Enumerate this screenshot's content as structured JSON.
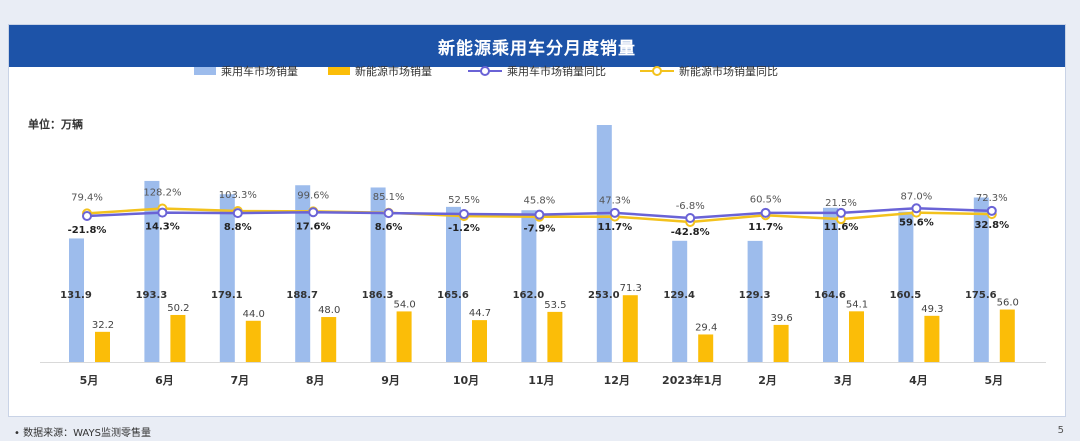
{
  "title": "新能源乘用车分月度销量",
  "unit_label": "单位：万辆",
  "source": "•    数据来源：WAYS监测零售量",
  "page_number": "5",
  "colors": {
    "title_bg": "#1d53a8",
    "bar_passenger": "#9dbcec",
    "bar_nev": "#fbbd08",
    "line_passenger": "#6a63d6",
    "line_nev": "#f3c21d"
  },
  "chart_data": {
    "type": "bar",
    "categories": [
      "5月",
      "6月",
      "7月",
      "8月",
      "9月",
      "10月",
      "11月",
      "12月",
      "2023年1月",
      "2月",
      "3月",
      "4月",
      "5月"
    ],
    "series": [
      {
        "name": "乘用车市场销量",
        "kind": "bar",
        "values": [
          131.9,
          193.3,
          179.1,
          188.7,
          186.3,
          165.6,
          162.0,
          253.0,
          129.4,
          129.3,
          164.6,
          160.5,
          175.6
        ],
        "labels": [
          "131.9",
          "193.3",
          "179.1",
          "188.7",
          "186.3",
          "165.6",
          "162.0",
          "253.0",
          "129.4",
          "129.3",
          "164.6",
          "160.5",
          "175.6"
        ]
      },
      {
        "name": "新能源市场销量",
        "kind": "bar",
        "values": [
          32.2,
          50.2,
          44.0,
          48.0,
          54.0,
          44.7,
          53.5,
          71.3,
          29.4,
          39.6,
          54.1,
          49.3,
          56.0
        ],
        "labels": [
          "32.2",
          "50.2",
          "44.0",
          "48.0",
          "54.0",
          "44.7",
          "53.5",
          "71.3",
          "29.4",
          "39.6",
          "54.1",
          "49.3",
          "56.0"
        ]
      },
      {
        "name": "乘用车市场销量同比",
        "kind": "line",
        "values": [
          -21.8,
          14.3,
          8.8,
          17.6,
          8.6,
          -1.2,
          -7.9,
          11.7,
          -42.8,
          11.7,
          11.6,
          59.6,
          32.8
        ],
        "labels": [
          "-21.8%",
          "14.3%",
          "8.8%",
          "17.6%",
          "8.6%",
          "-1.2%",
          "-7.9%",
          "11.7%",
          "-42.8%",
          "11.7%",
          "11.6%",
          "59.6%",
          "32.8%"
        ]
      },
      {
        "name": "新能源市场销量同比",
        "kind": "line",
        "values": [
          79.4,
          128.2,
          103.3,
          99.6,
          85.1,
          52.5,
          45.8,
          47.3,
          -6.8,
          60.5,
          21.5,
          87.0,
          72.3
        ],
        "labels": [
          "79.4%",
          "128.2%",
          "103.3%",
          "99.6%",
          "85.1%",
          "52.5%",
          "45.8%",
          "47.3%",
          "-6.8%",
          "60.5%",
          "21.5%",
          "87.0%",
          "72.3%"
        ]
      }
    ],
    "ylabel": "万辆",
    "ylim": [
      0,
      253
    ],
    "grid": false,
    "legend_position": "top"
  }
}
